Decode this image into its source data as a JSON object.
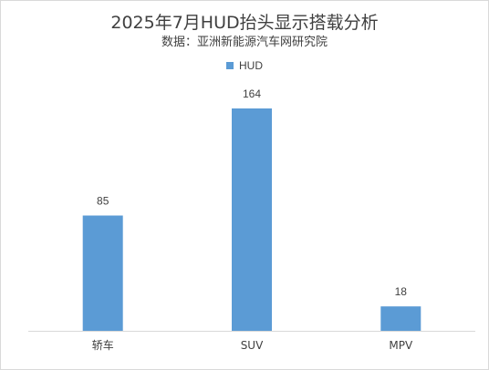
{
  "chart_data": {
    "type": "bar",
    "title": "2025年7月HUD抬头显示搭载分析",
    "subtitle": "数据：亚洲新能源汽车网研究院",
    "categories": [
      "轿车",
      "SUV",
      "MPV"
    ],
    "series": [
      {
        "name": "HUD",
        "values": [
          85,
          164,
          18
        ],
        "color": "#5B9BD5"
      }
    ],
    "data_labels": [
      "85",
      "164",
      "18"
    ],
    "xlabel": "",
    "ylabel": "",
    "ylim": [
      0,
      180
    ],
    "grid": false,
    "legend_position": "top-center",
    "axis_color": "#d9d9d9"
  }
}
